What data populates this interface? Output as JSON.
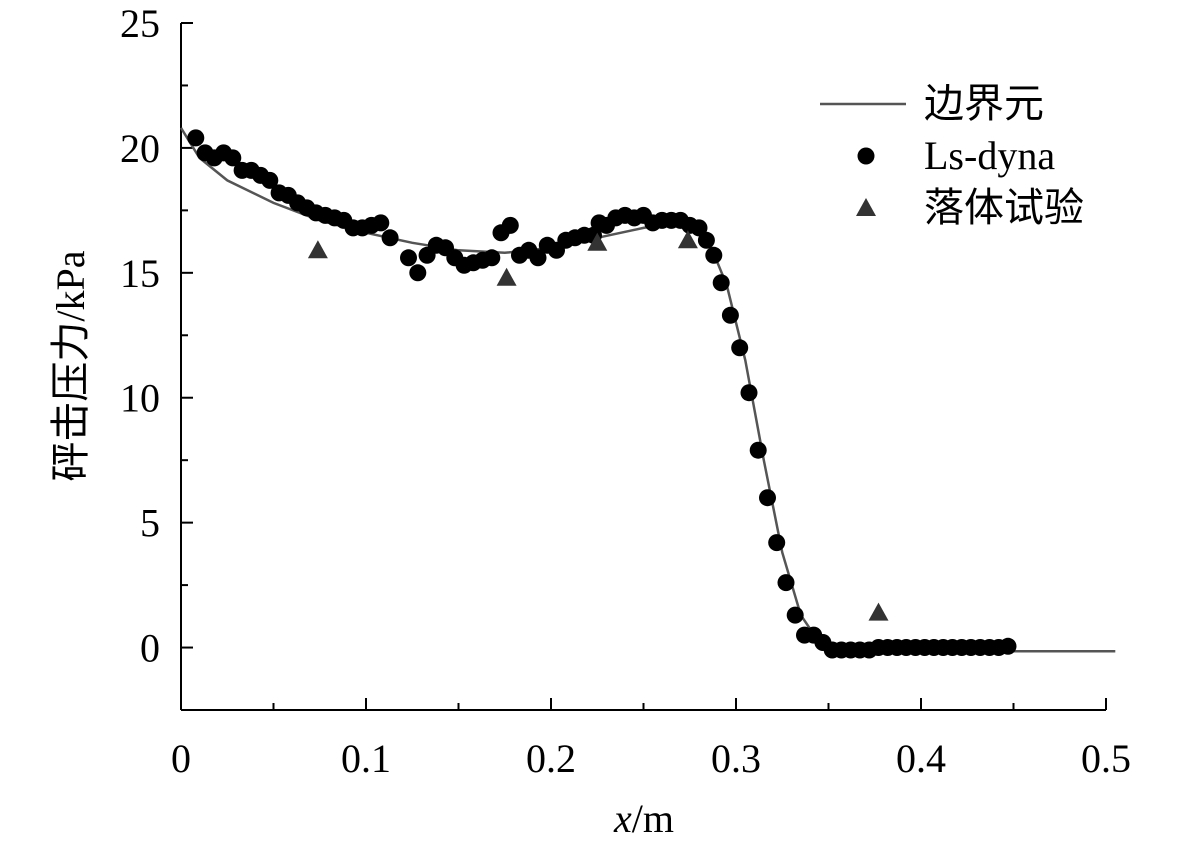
{
  "chart_data": {
    "type": "line",
    "xlabel_italic": "x",
    "xlabel_rest": "/m",
    "ylabel": "砰击压力/kPa",
    "xlim": [
      0,
      0.5
    ],
    "ylim": [
      -2.5,
      25
    ],
    "xticks": [
      0,
      0.1,
      0.2,
      0.3,
      0.4,
      0.5
    ],
    "xtick_labels": [
      "0",
      "0.1",
      "0.2",
      "0.3",
      "0.4",
      "0.5"
    ],
    "yticks": [
      0,
      5,
      10,
      15,
      20,
      25
    ],
    "ytick_labels": [
      "0",
      "5",
      "10",
      "15",
      "20",
      "25"
    ],
    "grid": false,
    "legend_position": "top-right",
    "colors": {
      "line": "#555555",
      "dots": "#000000",
      "triangles": "#333333"
    },
    "series": [
      {
        "name": "边界元",
        "kind": "line",
        "points": [
          [
            0.0,
            20.8
          ],
          [
            0.01,
            19.6
          ],
          [
            0.025,
            18.7
          ],
          [
            0.05,
            17.8
          ],
          [
            0.075,
            17.1
          ],
          [
            0.1,
            16.6
          ],
          [
            0.125,
            16.2
          ],
          [
            0.15,
            15.9
          ],
          [
            0.175,
            15.8
          ],
          [
            0.2,
            16.0
          ],
          [
            0.225,
            16.4
          ],
          [
            0.25,
            16.8
          ],
          [
            0.265,
            17.0
          ],
          [
            0.275,
            16.9
          ],
          [
            0.285,
            16.3
          ],
          [
            0.295,
            14.5
          ],
          [
            0.305,
            11.5
          ],
          [
            0.315,
            7.5
          ],
          [
            0.325,
            3.8
          ],
          [
            0.335,
            1.3
          ],
          [
            0.345,
            0.2
          ],
          [
            0.355,
            -0.1
          ],
          [
            0.37,
            -0.1
          ],
          [
            0.4,
            -0.1
          ],
          [
            0.45,
            -0.15
          ],
          [
            0.48,
            -0.15
          ],
          [
            0.505,
            -0.15
          ]
        ]
      },
      {
        "name": "Ls-dyna",
        "kind": "scatter-circle",
        "points": [
          [
            0.008,
            20.4
          ],
          [
            0.013,
            19.8
          ],
          [
            0.018,
            19.6
          ],
          [
            0.023,
            19.8
          ],
          [
            0.028,
            19.6
          ],
          [
            0.033,
            19.1
          ],
          [
            0.038,
            19.1
          ],
          [
            0.043,
            18.9
          ],
          [
            0.048,
            18.7
          ],
          [
            0.053,
            18.2
          ],
          [
            0.058,
            18.1
          ],
          [
            0.063,
            17.8
          ],
          [
            0.068,
            17.6
          ],
          [
            0.073,
            17.4
          ],
          [
            0.078,
            17.3
          ],
          [
            0.083,
            17.2
          ],
          [
            0.088,
            17.1
          ],
          [
            0.093,
            16.8
          ],
          [
            0.098,
            16.8
          ],
          [
            0.103,
            16.9
          ],
          [
            0.108,
            17.0
          ],
          [
            0.113,
            16.4
          ],
          [
            0.123,
            15.6
          ],
          [
            0.128,
            15.0
          ],
          [
            0.133,
            15.7
          ],
          [
            0.138,
            16.1
          ],
          [
            0.143,
            16.0
          ],
          [
            0.148,
            15.6
          ],
          [
            0.153,
            15.3
          ],
          [
            0.158,
            15.4
          ],
          [
            0.163,
            15.5
          ],
          [
            0.168,
            15.6
          ],
          [
            0.173,
            16.6
          ],
          [
            0.178,
            16.9
          ],
          [
            0.183,
            15.7
          ],
          [
            0.188,
            15.9
          ],
          [
            0.193,
            15.6
          ],
          [
            0.198,
            16.1
          ],
          [
            0.203,
            15.9
          ],
          [
            0.208,
            16.3
          ],
          [
            0.213,
            16.4
          ],
          [
            0.218,
            16.5
          ],
          [
            0.223,
            16.5
          ],
          [
            0.226,
            17.0
          ],
          [
            0.23,
            16.9
          ],
          [
            0.235,
            17.2
          ],
          [
            0.24,
            17.3
          ],
          [
            0.245,
            17.2
          ],
          [
            0.25,
            17.3
          ],
          [
            0.255,
            17.0
          ],
          [
            0.26,
            17.1
          ],
          [
            0.265,
            17.1
          ],
          [
            0.27,
            17.1
          ],
          [
            0.275,
            16.9
          ],
          [
            0.28,
            16.8
          ],
          [
            0.284,
            16.3
          ],
          [
            0.288,
            15.7
          ],
          [
            0.292,
            14.6
          ],
          [
            0.297,
            13.3
          ],
          [
            0.302,
            12.0
          ],
          [
            0.307,
            10.2
          ],
          [
            0.312,
            7.9
          ],
          [
            0.317,
            6.0
          ],
          [
            0.322,
            4.2
          ],
          [
            0.327,
            2.6
          ],
          [
            0.332,
            1.3
          ],
          [
            0.337,
            0.5
          ],
          [
            0.342,
            0.5
          ],
          [
            0.347,
            0.2
          ],
          [
            0.352,
            -0.1
          ],
          [
            0.357,
            -0.1
          ],
          [
            0.362,
            -0.1
          ],
          [
            0.367,
            -0.1
          ],
          [
            0.372,
            -0.1
          ],
          [
            0.377,
            0.0
          ],
          [
            0.382,
            0.0
          ],
          [
            0.387,
            0.0
          ],
          [
            0.392,
            0.0
          ],
          [
            0.397,
            0.0
          ],
          [
            0.402,
            0.0
          ],
          [
            0.407,
            0.0
          ],
          [
            0.412,
            0.0
          ],
          [
            0.417,
            0.0
          ],
          [
            0.422,
            0.0
          ],
          [
            0.427,
            0.0
          ],
          [
            0.432,
            0.0
          ],
          [
            0.437,
            0.0
          ],
          [
            0.442,
            0.0
          ],
          [
            0.447,
            0.05
          ]
        ]
      },
      {
        "name": "落体试验",
        "kind": "scatter-triangle",
        "points": [
          [
            0.074,
            15.9
          ],
          [
            0.176,
            14.8
          ],
          [
            0.225,
            16.2
          ],
          [
            0.274,
            16.3
          ],
          [
            0.377,
            1.4
          ]
        ]
      }
    ]
  }
}
